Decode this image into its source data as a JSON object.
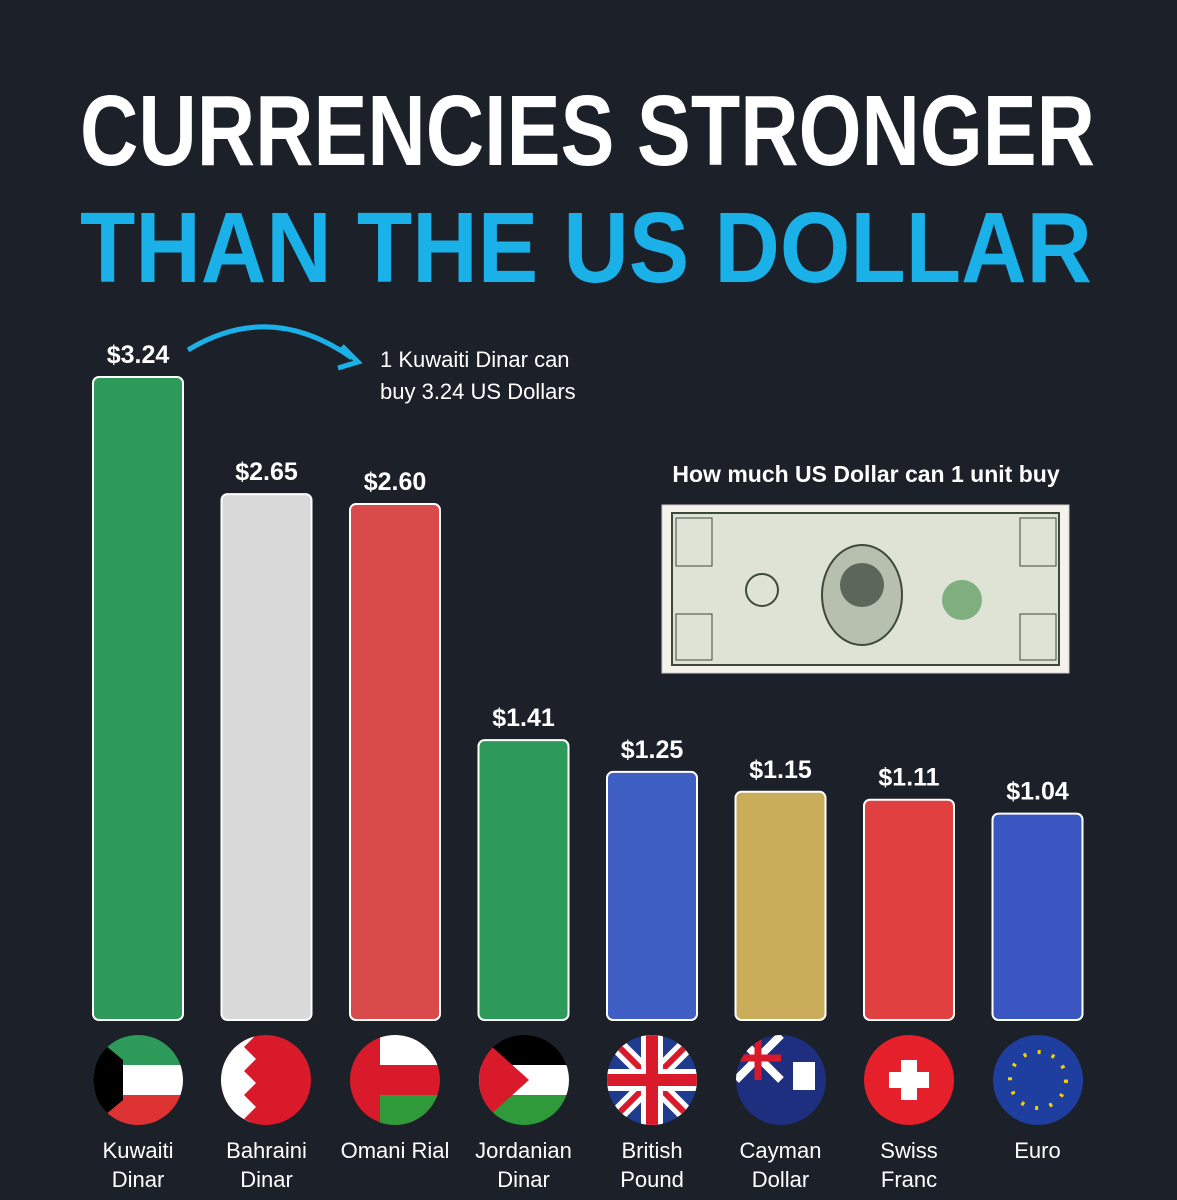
{
  "chart_data": {
    "type": "bar",
    "title": "CURRENCIES STRONGER",
    "subtitle": "THAN THE US DOLLAR",
    "legend_caption": "How much US Dollar can 1 unit buy",
    "annotation": "1 Kuwaiti Dinar can buy 3.24 US Dollars",
    "categories": [
      "Kuwaiti Dinar",
      "Bahraini Dinar",
      "Omani Rial",
      "Jordanian Dinar",
      "British Pound",
      "Cayman Dollar",
      "Swiss Franc",
      "Euro"
    ],
    "values": [
      3.24,
      2.65,
      2.6,
      1.41,
      1.25,
      1.15,
      1.11,
      1.04
    ],
    "value_labels": [
      "$3.24",
      "$2.65",
      "$2.60",
      "$1.41",
      "$1.25",
      "$1.15",
      "$1.11",
      "$1.04"
    ],
    "colors": [
      "#2e9a5a",
      "#d9d9d9",
      "#d94a4a",
      "#2e9a5a",
      "#3f5fc4",
      "#c9ad5a",
      "#e04040",
      "#3a56c0"
    ]
  }
}
